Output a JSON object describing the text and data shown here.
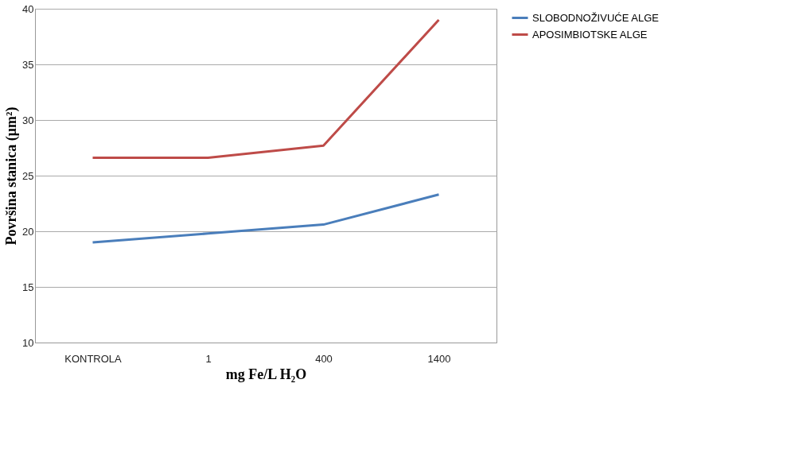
{
  "chart_data": {
    "type": "line",
    "xlabel": "mg Fe/L H₂O",
    "ylabel": "Površina stanica (µm²)",
    "categories": [
      "KONTROLA",
      "1",
      "400",
      "1400"
    ],
    "series": [
      {
        "name": "SLOBODNOŽIVUĆE ALGE",
        "color": "#4a7ebb",
        "values": [
          19.0,
          19.8,
          20.6,
          23.3
        ]
      },
      {
        "name": "APOSIMBIOTSKE ALGE",
        "color": "#be4b48",
        "values": [
          26.6,
          26.6,
          27.7,
          39.0
        ]
      }
    ],
    "ylim": [
      10,
      40
    ],
    "yticks": [
      10,
      15,
      20,
      25,
      30,
      35,
      40
    ],
    "grid": "y",
    "legend": "right",
    "marker": "none",
    "line_style": "solid"
  }
}
